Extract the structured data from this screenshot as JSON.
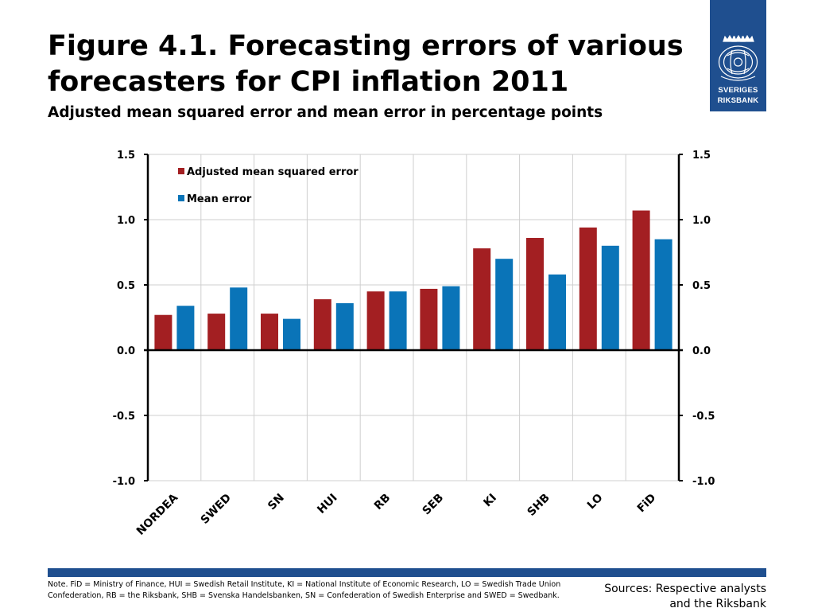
{
  "header": {
    "title_line1": "Figure 4.1. Forecasting errors of various",
    "title_line2": "forecasters for CPI inflation 2011",
    "subtitle": "Adjusted mean squared error and mean error in percentage points"
  },
  "logo": {
    "line1": "SVERIGES",
    "line2": "RIKSBANK",
    "color": "#1f4f8f"
  },
  "chart_data": {
    "type": "bar",
    "title": "Figure 4.1. Forecasting errors of various forecasters for CPI inflation 2011",
    "subtitle": "Adjusted mean squared error and mean error in percentage points",
    "categories": [
      "NORDEA",
      "SWED",
      "SN",
      "HUI",
      "RB",
      "SEB",
      "KI",
      "SHB",
      "LO",
      "FiD"
    ],
    "series": [
      {
        "name": "Adjusted mean squared error",
        "color": "#a31f22",
        "values": [
          0.27,
          0.28,
          0.28,
          0.39,
          0.45,
          0.47,
          0.78,
          0.86,
          0.94,
          1.07
        ]
      },
      {
        "name": "Mean error",
        "color": "#0a74b8",
        "values": [
          0.34,
          0.48,
          0.24,
          0.36,
          0.45,
          0.49,
          0.7,
          0.58,
          0.8,
          0.85
        ]
      }
    ],
    "ylim": [
      -1.0,
      1.5
    ],
    "yticks": [
      "1.5",
      "1.0",
      "0.5",
      "0.0",
      "-0.5",
      "-1.0"
    ],
    "ytick_values": [
      1.5,
      1.0,
      0.5,
      0.0,
      -0.5,
      -1.0
    ],
    "legend_position": "top-left",
    "grid": true,
    "xlabel": "",
    "ylabel": ""
  },
  "footer": {
    "note": "Note. FiD = Ministry of Finance, HUI = Swedish Retail Institute, KI = National Institute of Economic Research, LO = Swedish Trade Union Confederation, RB = the Riksbank, SHB = Svenska Handelsbanken, SN = Confederation of Swedish Enterprise and SWED = Swedbank.",
    "sources_line1": "Sources: Respective analysts",
    "sources_line2": "and the Riksbank"
  }
}
